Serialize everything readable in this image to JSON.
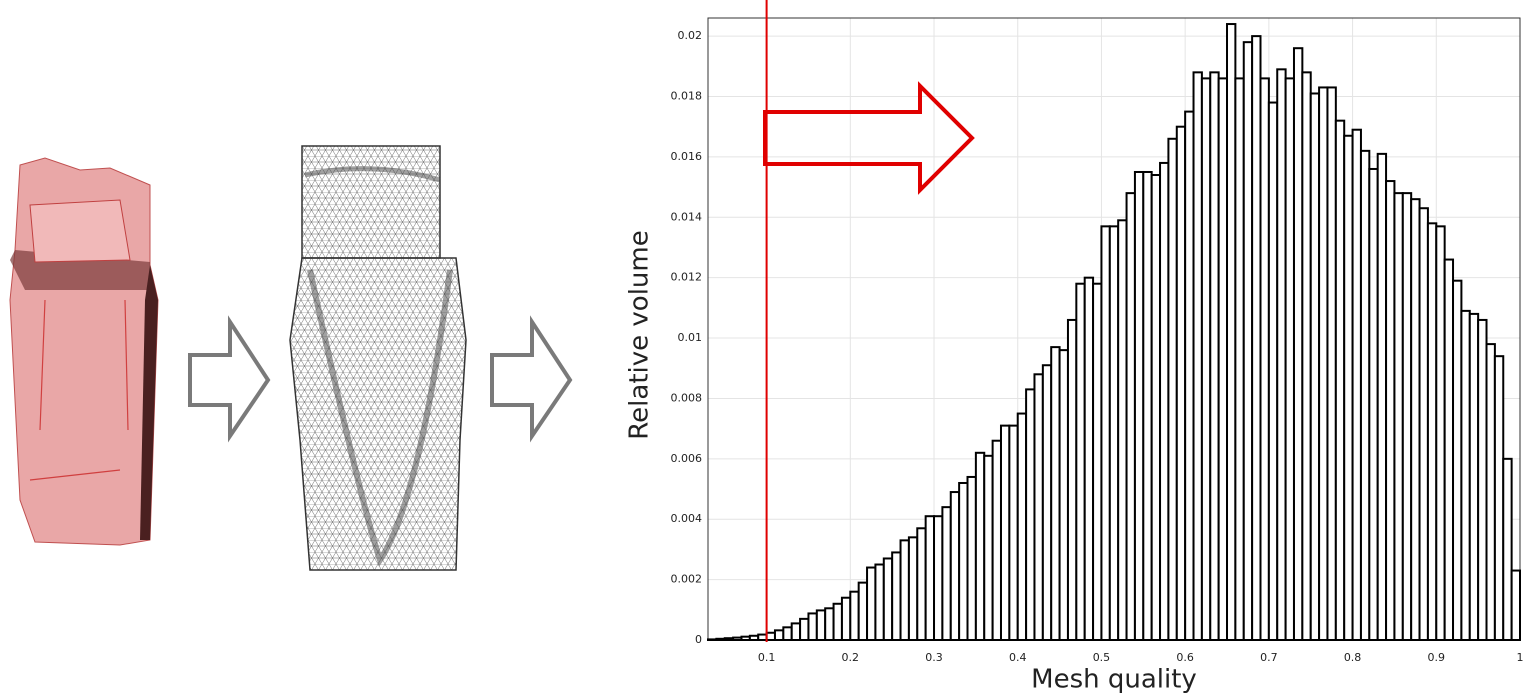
{
  "chart_data": {
    "type": "histogram",
    "xlabel": "Mesh quality",
    "ylabel": "Relative volume",
    "bins": [
      0.03,
      0.04,
      0.05,
      0.06,
      0.07,
      0.08,
      0.09,
      0.1,
      0.11,
      0.12,
      0.13,
      0.14,
      0.15,
      0.16,
      0.17,
      0.18,
      0.19,
      0.2,
      0.21,
      0.22,
      0.23,
      0.24,
      0.25,
      0.26,
      0.27,
      0.28,
      0.29,
      0.3,
      0.31,
      0.32,
      0.33,
      0.34,
      0.35,
      0.36,
      0.37,
      0.38,
      0.39,
      0.4,
      0.41,
      0.42,
      0.43,
      0.44,
      0.45,
      0.46,
      0.47,
      0.48,
      0.49,
      0.5,
      0.51,
      0.52,
      0.53,
      0.54,
      0.55,
      0.56,
      0.57,
      0.58,
      0.59,
      0.6,
      0.61,
      0.62,
      0.63,
      0.64,
      0.65,
      0.66,
      0.67,
      0.68,
      0.69,
      0.7,
      0.71,
      0.72,
      0.73,
      0.74,
      0.75,
      0.76,
      0.77,
      0.78,
      0.79,
      0.8,
      0.81,
      0.82,
      0.83,
      0.84,
      0.85,
      0.86,
      0.87,
      0.88,
      0.89,
      0.9,
      0.91,
      0.92,
      0.93,
      0.94,
      0.95,
      0.96,
      0.97,
      0.98,
      0.99,
      1.0
    ],
    "values": [
      2e-05,
      4e-05,
      6e-05,
      8e-05,
      0.00011,
      0.00014,
      0.00018,
      0.00024,
      0.00032,
      0.00042,
      0.00055,
      0.0007,
      0.00088,
      0.00098,
      0.00105,
      0.0012,
      0.0014,
      0.0016,
      0.0019,
      0.0024,
      0.0025,
      0.0027,
      0.0029,
      0.0033,
      0.0034,
      0.0037,
      0.0041,
      0.0041,
      0.0044,
      0.0049,
      0.0052,
      0.0054,
      0.0062,
      0.0061,
      0.0066,
      0.0071,
      0.0071,
      0.0075,
      0.0083,
      0.0088,
      0.0091,
      0.0097,
      0.0096,
      0.0106,
      0.0118,
      0.012,
      0.0118,
      0.0137,
      0.0137,
      0.0139,
      0.0148,
      0.0155,
      0.0155,
      0.0154,
      0.0158,
      0.0166,
      0.017,
      0.0175,
      0.0188,
      0.0186,
      0.0188,
      0.0186,
      0.0204,
      0.0186,
      0.0198,
      0.02,
      0.0186,
      0.0178,
      0.0189,
      0.0186,
      0.0196,
      0.0188,
      0.0181,
      0.0183,
      0.0183,
      0.0172,
      0.0167,
      0.0169,
      0.0162,
      0.0156,
      0.0161,
      0.0152,
      0.0148,
      0.0148,
      0.0146,
      0.0143,
      0.0138,
      0.0137,
      0.0126,
      0.0119,
      0.0109,
      0.0108,
      0.0106,
      0.0098,
      0.0094,
      0.006,
      0.0023
    ],
    "color": "#ffffff",
    "edge_color": "#000000",
    "threshold": 0.1,
    "threshold_color": "#e00000",
    "xlim": [
      0.03,
      1.0
    ],
    "ylim": [
      0,
      0.0206
    ],
    "xticks": [
      0.1,
      0.2,
      0.3,
      0.4,
      0.5,
      0.6,
      0.7,
      0.8,
      0.9,
      1
    ],
    "yticks": [
      0,
      0.002,
      0.004,
      0.006,
      0.008,
      0.01,
      0.012,
      0.014,
      0.016,
      0.018,
      0.02
    ],
    "grid": true
  }
}
